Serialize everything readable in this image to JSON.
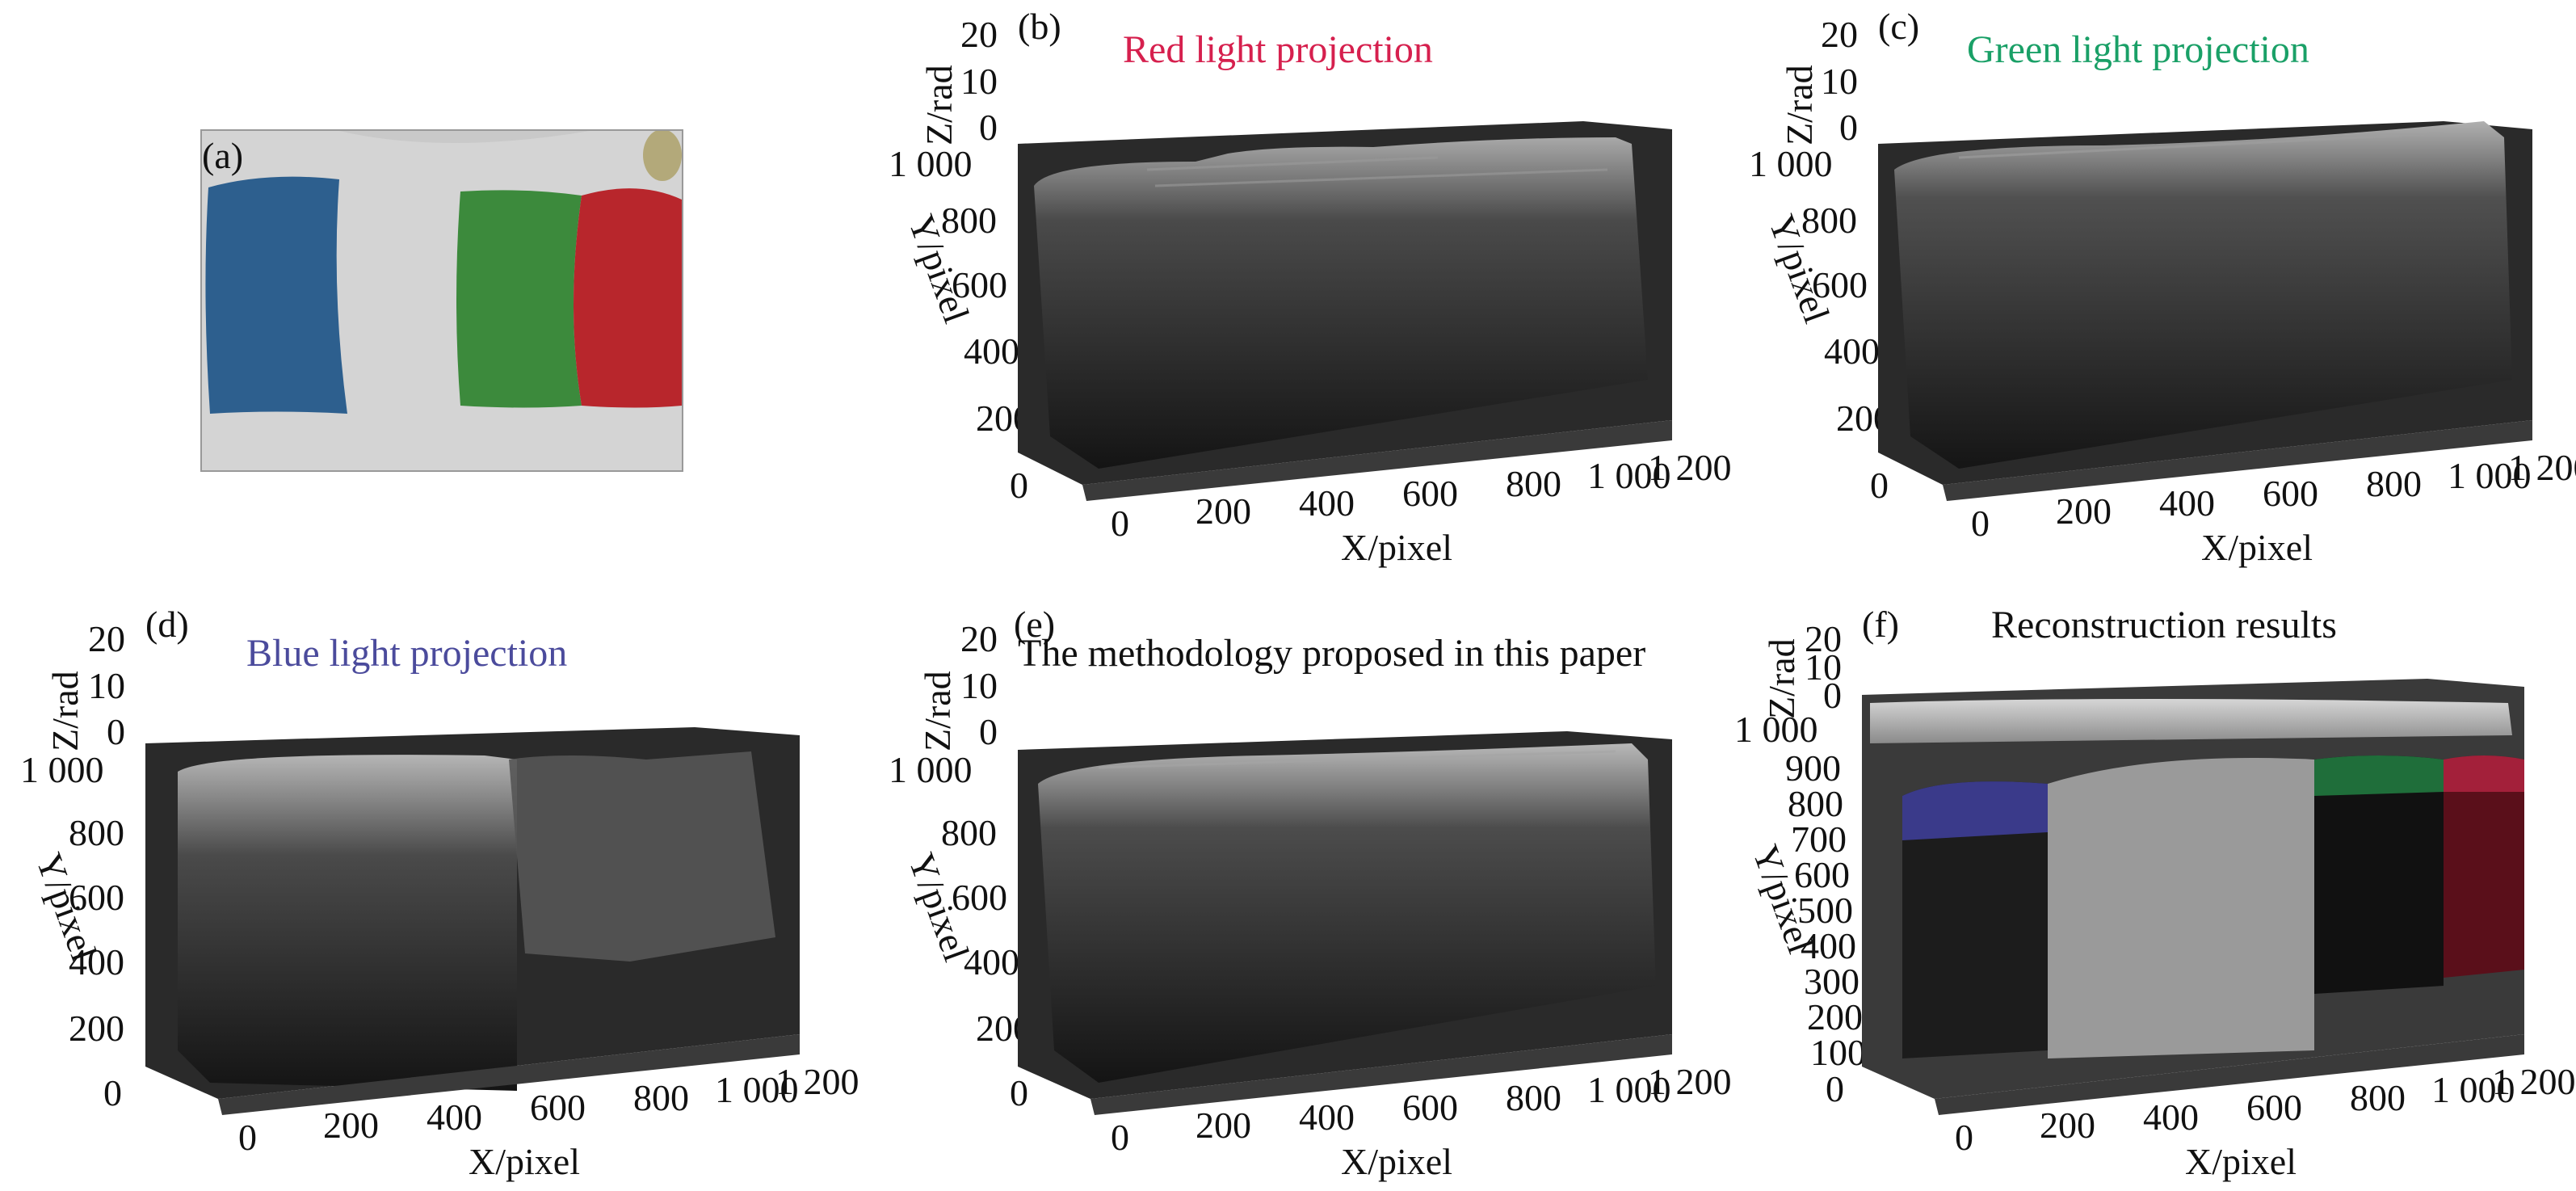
{
  "figure": {
    "panels": [
      {
        "id": "a",
        "label": "(a)"
      },
      {
        "id": "b",
        "label": "(b)",
        "title": "Red light projection",
        "title_color": "#d6204e"
      },
      {
        "id": "c",
        "label": "(c)",
        "title": "Green light projection",
        "title_color": "#1aa067"
      },
      {
        "id": "d",
        "label": "(d)",
        "title": "Blue light projection",
        "title_color": "#4b4b9c"
      },
      {
        "id": "e",
        "label": "(e)",
        "title": "The methodology proposed in this paper",
        "title_color": "#111111"
      },
      {
        "id": "f",
        "label": "(f)",
        "title": "Reconstruction results",
        "title_color": "#111111"
      }
    ],
    "axes": {
      "z_label": "Z/rad",
      "y_label": "Y/pixel",
      "x_label": "X/pixel",
      "z_ticks": [
        "20",
        "10",
        "0"
      ],
      "y_ticks": [
        "1 000",
        "800",
        "600",
        "400",
        "200",
        "0"
      ],
      "y_ticks_f": [
        "1 000",
        "900",
        "800",
        "700",
        "600",
        "500",
        "400",
        "300",
        "200",
        "100",
        "0"
      ],
      "x_ticks": [
        "0",
        "200",
        "400",
        "600",
        "800",
        "1 000",
        "1 200"
      ]
    },
    "colors": {
      "blue_strip": "#2d5f8e",
      "green_strip": "#3c8a3c",
      "red_strip": "#b8262c",
      "surface_dark": "#1e1e1e",
      "surface_light": "#bdbdbd"
    }
  }
}
